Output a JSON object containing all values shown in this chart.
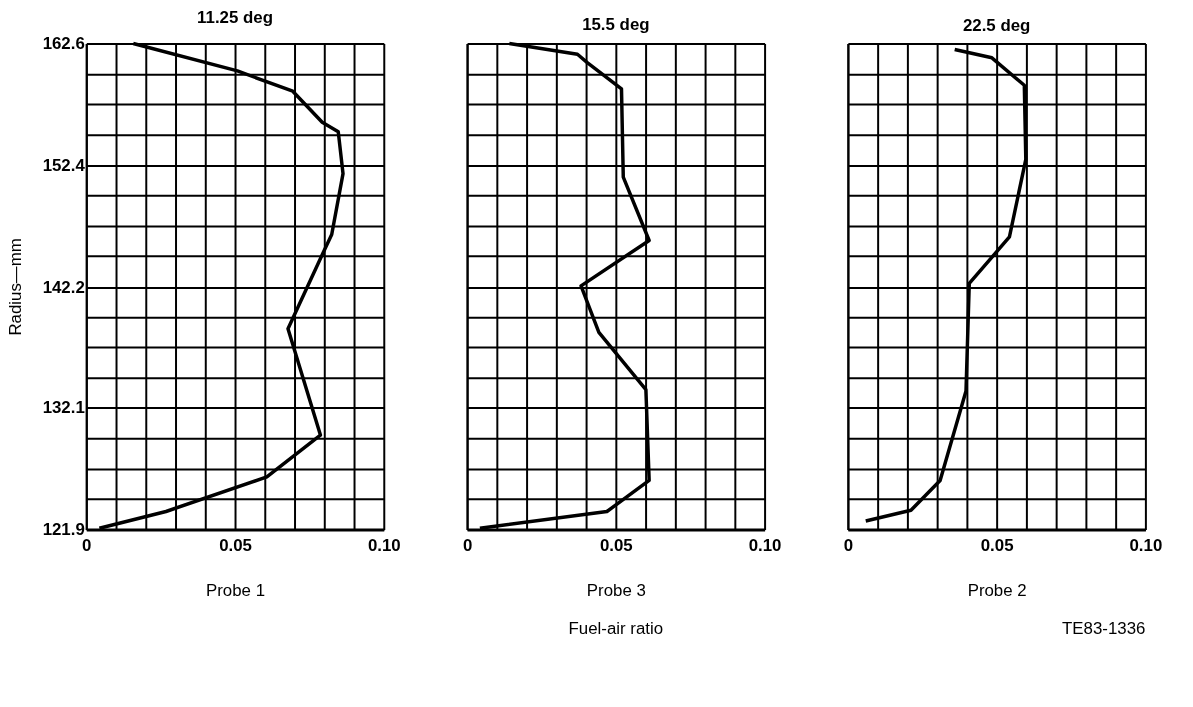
{
  "chart_data": [
    {
      "type": "line",
      "title": "11.25 deg",
      "xlabel": "Probe 1",
      "ylabel": "Radius—mm",
      "series": [
        {
          "color": "#000000",
          "x": [
            0.0158,
            0.0508,
            0.0694,
            0.0793,
            0.0847,
            0.0863,
            0.0825,
            0.0793,
            0.0678,
            0.0787,
            0.0607,
            0.0268,
            0.0044
          ],
          "values": [
            162.6,
            160.3,
            158.6,
            156.0,
            155.2,
            151.7,
            146.6,
            144.9,
            138.7,
            129.8,
            126.3,
            123.4,
            122.0
          ]
        }
      ],
      "xlim": [
        0,
        0.1
      ],
      "ylim": [
        121.9,
        162.6
      ],
      "xticks": [
        0,
        {
          "value": 0.01,
          "label": null
        },
        {
          "value": 0.02,
          "label": null
        },
        {
          "value": 0.03,
          "label": null
        },
        {
          "value": 0.04,
          "label": null
        },
        0.05,
        {
          "value": 0.06,
          "label": null
        },
        {
          "value": 0.07,
          "label": null
        },
        {
          "value": 0.08,
          "label": null
        },
        {
          "value": 0.09,
          "label": null
        },
        {
          "value": 0.1,
          "label": "0.10"
        }
      ],
      "yticks": [
        121.9,
        {
          "value": 124.44,
          "label": null
        },
        {
          "value": 126.98,
          "label": null
        },
        {
          "value": 129.53,
          "label": null
        },
        132.1,
        {
          "value": 134.62,
          "label": null
        },
        {
          "value": 137.16,
          "label": null
        },
        {
          "value": 139.71,
          "label": null
        },
        142.2,
        {
          "value": 144.79,
          "label": null
        },
        {
          "value": 147.34,
          "label": null
        },
        {
          "value": 149.88,
          "label": null
        },
        152.4,
        {
          "value": 154.97,
          "label": null
        },
        {
          "value": 157.51,
          "label": null
        },
        {
          "value": 160.06,
          "label": null
        },
        162.6
      ],
      "grid": true,
      "marker": "none",
      "line_style": "solid"
    },
    {
      "type": "line",
      "title": "15.5 deg",
      "xlabel": "Probe 3",
      "annotations": [
        "Fuel-air ratio"
      ],
      "series": [
        {
          "color": "#000000",
          "x": [
            0.0142,
            0.0371,
            0.0404,
            0.0519,
            0.0525,
            0.0612,
            0.0383,
            0.0443,
            0.0601,
            0.0612,
            0.047,
            0.0043
          ],
          "values": [
            162.6,
            161.7,
            161.0,
            158.8,
            151.4,
            146.1,
            142.3,
            138.4,
            133.6,
            126.0,
            123.4,
            122.0
          ]
        }
      ],
      "xlim": [
        0,
        0.1
      ],
      "ylim": [
        121.9,
        162.6
      ],
      "xticks": [
        0,
        {
          "value": 0.01,
          "label": null
        },
        {
          "value": 0.02,
          "label": null
        },
        {
          "value": 0.03,
          "label": null
        },
        {
          "value": 0.04,
          "label": null
        },
        0.05,
        {
          "value": 0.06,
          "label": null
        },
        {
          "value": 0.07,
          "label": null
        },
        {
          "value": 0.08,
          "label": null
        },
        {
          "value": 0.09,
          "label": null
        },
        {
          "value": 0.1,
          "label": "0.10"
        }
      ],
      "yticks": [
        121.9,
        {
          "value": 124.44,
          "label": null
        },
        {
          "value": 126.98,
          "label": null
        },
        {
          "value": 129.53,
          "label": null
        },
        132.1,
        {
          "value": 134.62,
          "label": null
        },
        {
          "value": 137.16,
          "label": null
        },
        {
          "value": 139.71,
          "label": null
        },
        142.2,
        {
          "value": 144.79,
          "label": null
        },
        {
          "value": 147.34,
          "label": null
        },
        {
          "value": 149.88,
          "label": null
        },
        152.4,
        {
          "value": 154.97,
          "label": null
        },
        {
          "value": 157.51,
          "label": null
        },
        {
          "value": 160.06,
          "label": null
        },
        162.6
      ],
      "tick_labels": "x",
      "grid": true,
      "marker": "none",
      "line_style": "solid"
    },
    {
      "type": "line",
      "title": "22.5 deg",
      "xlabel": "Probe 2",
      "annotations": [
        "TE83-1336"
      ],
      "series": [
        {
          "color": "#000000",
          "x": [
            0.0359,
            0.0484,
            0.0593,
            0.0598,
            0.0543,
            0.0408,
            0.0397,
            0.031,
            0.0212,
            0.006
          ],
          "values": [
            162.1,
            161.4,
            159.1,
            152.9,
            146.4,
            142.5,
            133.5,
            126.0,
            123.5,
            122.6
          ]
        }
      ],
      "xlim": [
        0,
        0.1
      ],
      "ylim": [
        121.9,
        162.6
      ],
      "xticks": [
        0,
        {
          "value": 0.01,
          "label": null
        },
        {
          "value": 0.02,
          "label": null
        },
        {
          "value": 0.03,
          "label": null
        },
        {
          "value": 0.04,
          "label": null
        },
        0.05,
        {
          "value": 0.06,
          "label": null
        },
        {
          "value": 0.07,
          "label": null
        },
        {
          "value": 0.08,
          "label": null
        },
        {
          "value": 0.09,
          "label": null
        },
        {
          "value": 0.1,
          "label": "0.10"
        }
      ],
      "yticks": [
        121.9,
        {
          "value": 124.44,
          "label": null
        },
        {
          "value": 126.98,
          "label": null
        },
        {
          "value": 129.53,
          "label": null
        },
        132.1,
        {
          "value": 134.62,
          "label": null
        },
        {
          "value": 137.16,
          "label": null
        },
        {
          "value": 139.71,
          "label": null
        },
        142.2,
        {
          "value": 144.79,
          "label": null
        },
        {
          "value": 147.34,
          "label": null
        },
        {
          "value": 149.88,
          "label": null
        },
        152.4,
        {
          "value": 154.97,
          "label": null
        },
        {
          "value": 157.51,
          "label": null
        },
        {
          "value": 160.06,
          "label": null
        },
        162.6
      ],
      "tick_labels": "x",
      "grid": true,
      "marker": "none",
      "line_style": "solid"
    }
  ]
}
